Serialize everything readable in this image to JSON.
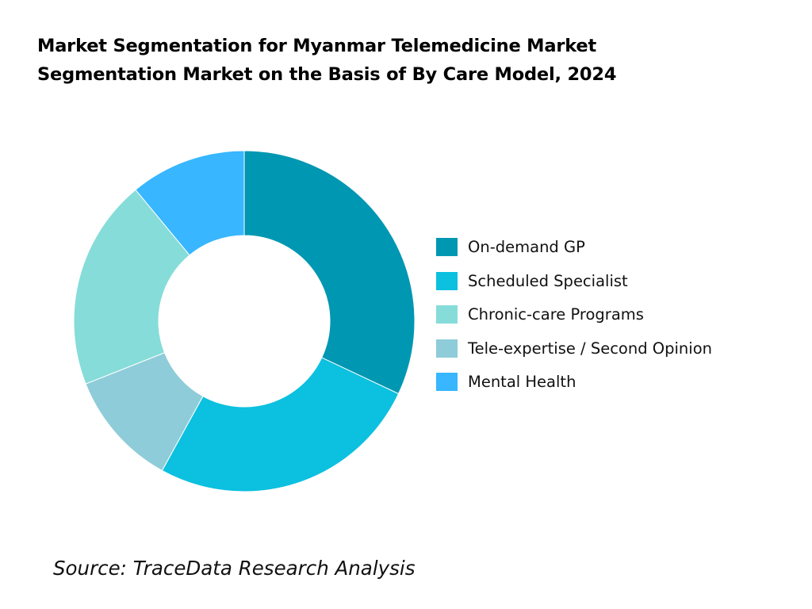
{
  "chart_data": {
    "type": "pie",
    "title": "Market Segmentation for Myanmar Telemedicine Market Segmentation Market on the Basis of By Care Model, 2024",
    "title_lines": [
      "Market Segmentation for Myanmar Telemedicine Market",
      "Segmentation Market on the Basis of By Care Model, 2024"
    ],
    "donut": true,
    "categories": [
      "On-demand GP",
      "Scheduled Specialist",
      "Chronic-care Programs",
      "Tele-expertise / Second Opinion",
      "Mental Health"
    ],
    "values": [
      32,
      26,
      20,
      11,
      11
    ],
    "plot_order": [
      "On-demand GP",
      "Scheduled Specialist",
      "Tele-expertise / Second Opinion",
      "Chronic-care Programs",
      "Mental Health"
    ],
    "colors": {
      "On-demand GP": "#0097b2",
      "Scheduled Specialist": "#0cc0df",
      "Chronic-care Programs": "#86dcd9",
      "Tele-expertise / Second Opinion": "#8eccd9",
      "Mental Health": "#38b6ff"
    },
    "legend_position": "right"
  },
  "source": "Source: TraceData Research Analysis"
}
